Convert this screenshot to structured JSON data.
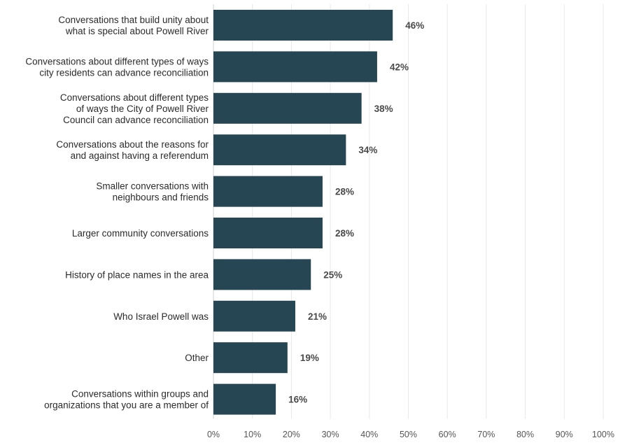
{
  "chart_data": {
    "type": "bar",
    "orientation": "horizontal",
    "categories": [
      "Conversations that build unity about\nwhat is special about Powell River",
      "Conversations about different types of ways\ncity residents can advance reconciliation",
      "Conversations about different types\nof ways the City of Powell River\nCouncil can advance reconciliation",
      "Conversations about the reasons for\nand against having a referendum",
      "Smaller conversations with\nneighbours and friends",
      "Larger community conversations",
      "History of place names in the area",
      "Who Israel Powell was",
      "Other",
      "Conversations within groups and\norganizations that you are a member of"
    ],
    "values": [
      46,
      42,
      38,
      34,
      28,
      28,
      25,
      21,
      19,
      16
    ],
    "value_labels": [
      "46%",
      "42%",
      "38%",
      "34%",
      "28%",
      "28%",
      "25%",
      "21%",
      "19%",
      "16%"
    ],
    "xlim": [
      0,
      100
    ],
    "xticks": [
      0,
      10,
      20,
      30,
      40,
      50,
      60,
      70,
      80,
      90,
      100
    ],
    "xtick_labels": [
      "0%",
      "10%",
      "20%",
      "30%",
      "40%",
      "50%",
      "60%",
      "70%",
      "80%",
      "90%",
      "100%"
    ],
    "title": "",
    "xlabel": "",
    "ylabel": "",
    "grid": true,
    "legend": "none",
    "bar_color": "#264653"
  }
}
